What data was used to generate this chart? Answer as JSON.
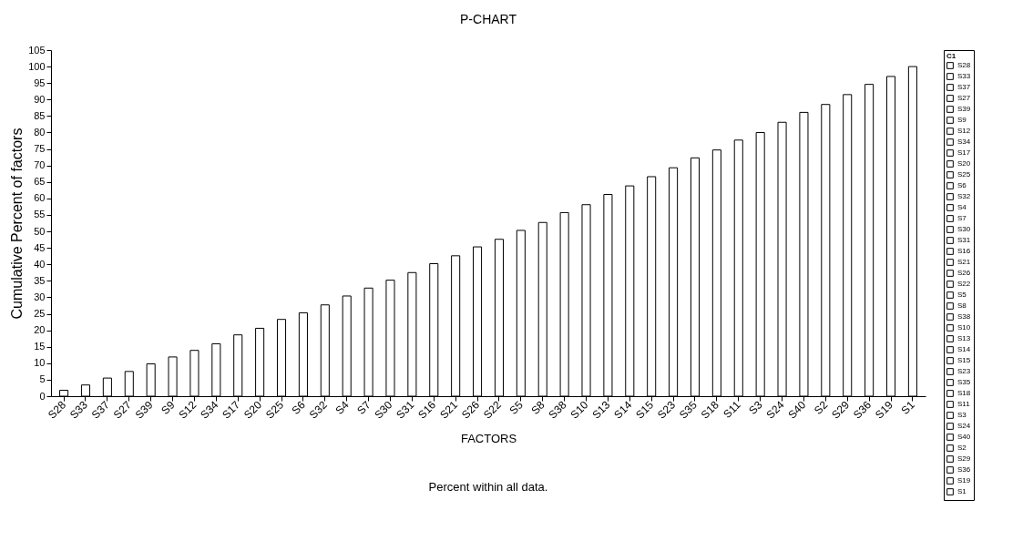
{
  "chart_data": {
    "type": "bar",
    "title": "P-CHART",
    "xlabel": "FACTORS",
    "ylabel": "Cumulative Percent of factors",
    "annotations": [
      "Percent within all data."
    ],
    "legend_title": "C1",
    "categories": [
      "S28",
      "S33",
      "S37",
      "S27",
      "S39",
      "S9",
      "S12",
      "S34",
      "S17",
      "S20",
      "S25",
      "S6",
      "S32",
      "S4",
      "S7",
      "S30",
      "S31",
      "S16",
      "S21",
      "S26",
      "S22",
      "S5",
      "S8",
      "S38",
      "S10",
      "S13",
      "S14",
      "S15",
      "S23",
      "S35",
      "S18",
      "S11",
      "S3",
      "S24",
      "S40",
      "S2",
      "S29",
      "S36",
      "S19",
      "S1"
    ],
    "values": [
      1.8,
      3.4,
      5.5,
      7.5,
      9.8,
      11.9,
      13.9,
      15.9,
      18.6,
      20.6,
      23.3,
      25.3,
      27.7,
      30.4,
      32.8,
      35.2,
      37.5,
      40.2,
      42.6,
      45.3,
      47.6,
      50.3,
      52.7,
      55.7,
      58.1,
      61.2,
      63.8,
      66.6,
      69.3,
      72.3,
      74.7,
      77.7,
      80.0,
      83.1,
      86.1,
      88.5,
      91.5,
      94.6,
      97.0,
      100
    ],
    "colors": [
      "#ffffff",
      "#ffffff",
      "#ffffff",
      "#ffffff",
      "#ffffff",
      "#ffffff",
      "#ffffff",
      "#ffffff",
      "#ffffff",
      "#ffffff",
      "#ffffff",
      "#ffffff",
      "#ffffff",
      "#ffffff",
      "#ffffff",
      "#ffffff",
      "#ffffff",
      "#ffffff",
      "#ffffff",
      "#ffffff",
      "#ffffff",
      "#ffffff",
      "#ffffff",
      "#ffffff",
      "#ffffff",
      "#ffffff",
      "#ffffff",
      "#ffffff",
      "#ffffff",
      "#ffffff",
      "#ffffff",
      "#ffffff",
      "#ffffff",
      "#ffffff",
      "#ffffff",
      "#ffffff",
      "#ffffff",
      "#ffffff",
      "#ffffff",
      "#ffffff"
    ],
    "ylim": [
      0,
      105
    ],
    "yticks": [
      0,
      5,
      10,
      15,
      20,
      25,
      30,
      35,
      40,
      45,
      50,
      55,
      60,
      65,
      70,
      75,
      80,
      85,
      90,
      95,
      100,
      105
    ],
    "grid": false
  }
}
